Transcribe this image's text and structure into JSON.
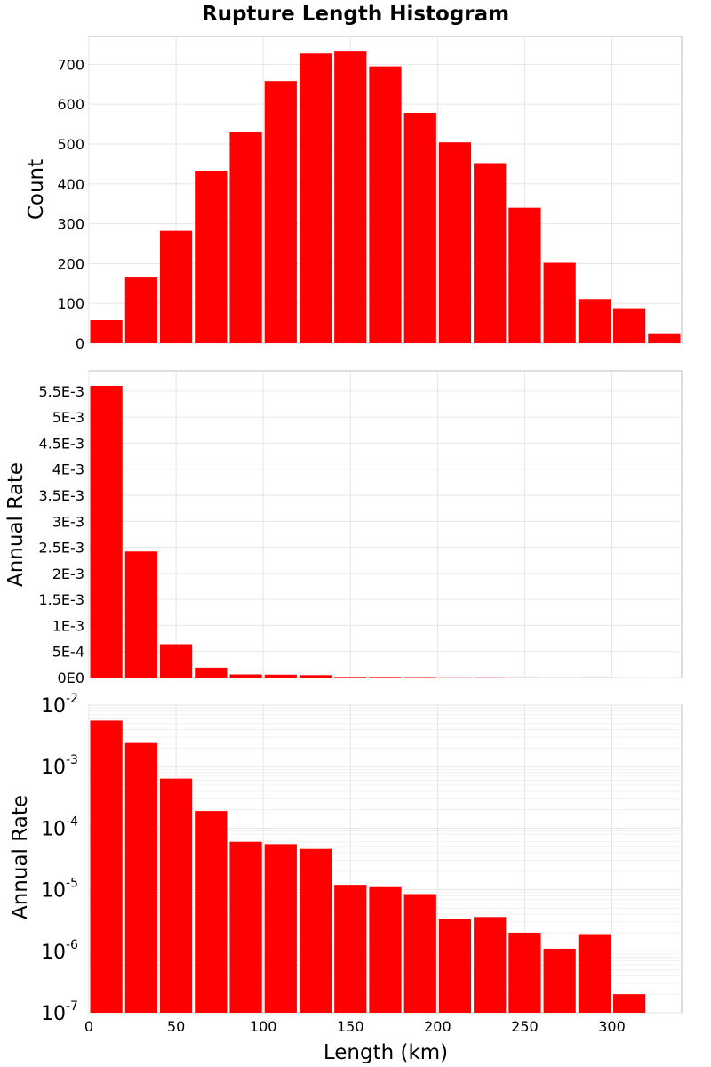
{
  "title": "Rupture Length Histogram",
  "colors": {
    "bar": "#ff0000"
  },
  "xlabel": "Length (km)",
  "xlim": [
    0,
    340
  ],
  "xticks": [
    0,
    50,
    100,
    150,
    200,
    250,
    300
  ],
  "xtick_labels": [
    "0",
    "50",
    "100",
    "150",
    "200",
    "250",
    "300"
  ],
  "bin_width": 20,
  "chart_data": [
    {
      "type": "bar",
      "ylabel": "Count",
      "scale": "linear",
      "ylim": [
        0,
        770
      ],
      "yticks": [
        0,
        100,
        200,
        300,
        400,
        500,
        600,
        700
      ],
      "ytick_labels": [
        "0",
        "100",
        "200",
        "300",
        "400",
        "500",
        "600",
        "700"
      ],
      "bin_starts": [
        0,
        20,
        40,
        60,
        80,
        100,
        120,
        140,
        160,
        180,
        200,
        220,
        240,
        260,
        280,
        300,
        320
      ],
      "values": [
        58,
        165,
        282,
        433,
        530,
        658,
        727,
        734,
        695,
        578,
        504,
        452,
        340,
        202,
        111,
        88,
        23
      ]
    },
    {
      "type": "bar",
      "ylabel": "Annual Rate",
      "scale": "linear",
      "ylim": [
        0,
        0.00589
      ],
      "yticks": [
        0,
        0.0005,
        0.001,
        0.0015,
        0.002,
        0.0025,
        0.003,
        0.0035,
        0.004,
        0.0045,
        0.005,
        0.0055
      ],
      "ytick_labels": [
        "0E0",
        "5E-4",
        "1E-3",
        "1.5E-3",
        "2E-3",
        "2.5E-3",
        "3E-3",
        "3.5E-3",
        "4E-3",
        "4.5E-3",
        "5E-3",
        "5.5E-3"
      ],
      "bin_starts": [
        0,
        20,
        40,
        60,
        80,
        100,
        120,
        140,
        160,
        180,
        200,
        220,
        240,
        260,
        280,
        300,
        320
      ],
      "values": [
        0.0056,
        0.00242,
        0.00064,
        0.00019,
        6e-05,
        5.5e-05,
        4.6e-05,
        1.2e-05,
        1.1e-05,
        8.5e-06,
        3.3e-06,
        3.6e-06,
        2e-06,
        1.1e-06,
        1.9e-06,
        2e-07,
        1e-07
      ]
    },
    {
      "type": "bar",
      "ylabel": "Annual Rate",
      "scale": "log",
      "ylim": [
        1e-07,
        0.01
      ],
      "yticks": [
        1e-07,
        1e-06,
        1e-05,
        0.0001,
        0.001,
        0.01
      ],
      "ytick_labels": [
        {
          "base": "10",
          "exp": "-7"
        },
        {
          "base": "10",
          "exp": "-6"
        },
        {
          "base": "10",
          "exp": "-5"
        },
        {
          "base": "10",
          "exp": "-4"
        },
        {
          "base": "10",
          "exp": "-3"
        },
        {
          "base": "10",
          "exp": "-2"
        }
      ],
      "bin_starts": [
        0,
        20,
        40,
        60,
        80,
        100,
        120,
        140,
        160,
        180,
        200,
        220,
        240,
        260,
        280,
        300,
        320
      ],
      "values": [
        0.0056,
        0.00242,
        0.00064,
        0.00019,
        6e-05,
        5.5e-05,
        4.6e-05,
        1.2e-05,
        1.1e-05,
        8.5e-06,
        3.3e-06,
        3.6e-06,
        2e-06,
        1.1e-06,
        1.9e-06,
        2e-07,
        1e-07
      ]
    }
  ]
}
